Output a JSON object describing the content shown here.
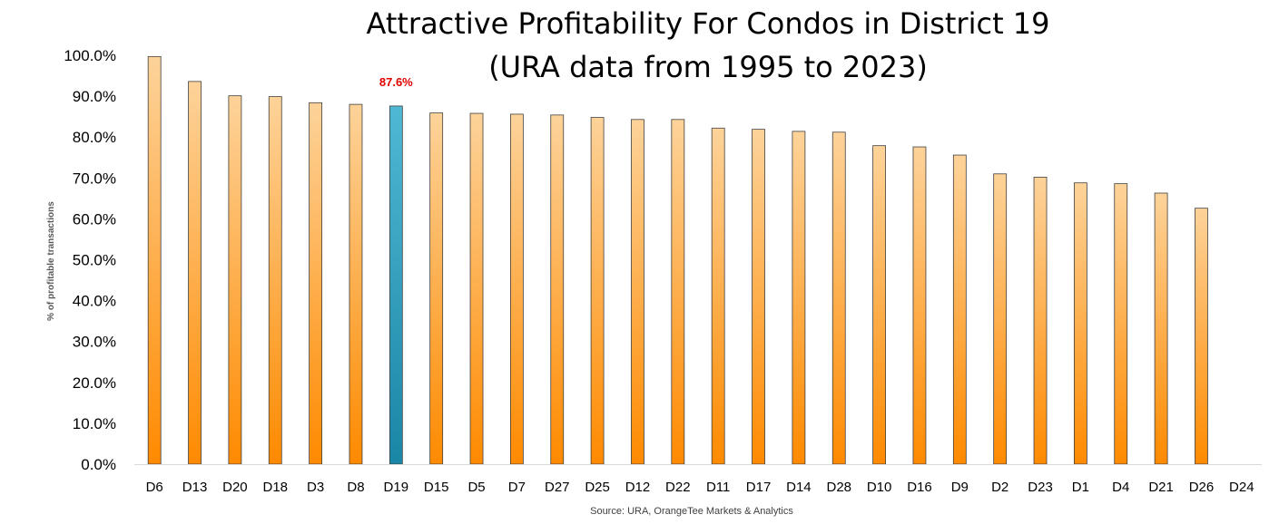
{
  "chart_data": {
    "type": "bar",
    "title": "Attractive Profitability For Condos in District 19",
    "subtitle": "(URA data from 1995 to 2023)",
    "xlabel": "",
    "ylabel": "% of profitable transactions",
    "ylim": [
      0,
      100
    ],
    "ytick_step": 10,
    "ytick_format": "0.0%",
    "grid": false,
    "legend": "none",
    "categories": [
      "D6",
      "D13",
      "D20",
      "D18",
      "D3",
      "D8",
      "D19",
      "D15",
      "D5",
      "D7",
      "D27",
      "D25",
      "D12",
      "D22",
      "D11",
      "D17",
      "D14",
      "D28",
      "D10",
      "D16",
      "D9",
      "D2",
      "D23",
      "D1",
      "D4",
      "D21",
      "D26",
      "D24"
    ],
    "series": [
      {
        "values": [
          99.7,
          93.6,
          90.1,
          89.9,
          88.4,
          88.0,
          87.6,
          85.9,
          85.8,
          85.6,
          85.4,
          84.8,
          84.3,
          84.3,
          82.2,
          81.9,
          81.4,
          81.2,
          77.9,
          77.6,
          75.6,
          71.0,
          70.2,
          68.8,
          68.6,
          66.3,
          62.6,
          0
        ]
      }
    ],
    "highlight": {
      "category": "D19",
      "label": "87.6%",
      "label_color": "#e00000"
    },
    "colors": {
      "bar_top": "#fdd39a",
      "bar_bottom": "#ff8a00",
      "highlight_top": "#4fb8d3",
      "highlight_bottom": "#1a86a6",
      "bar_outline": "#404040",
      "axis": "#d9d9d9"
    },
    "source": "Source: URA, OrangeTee Markets & Analytics"
  }
}
